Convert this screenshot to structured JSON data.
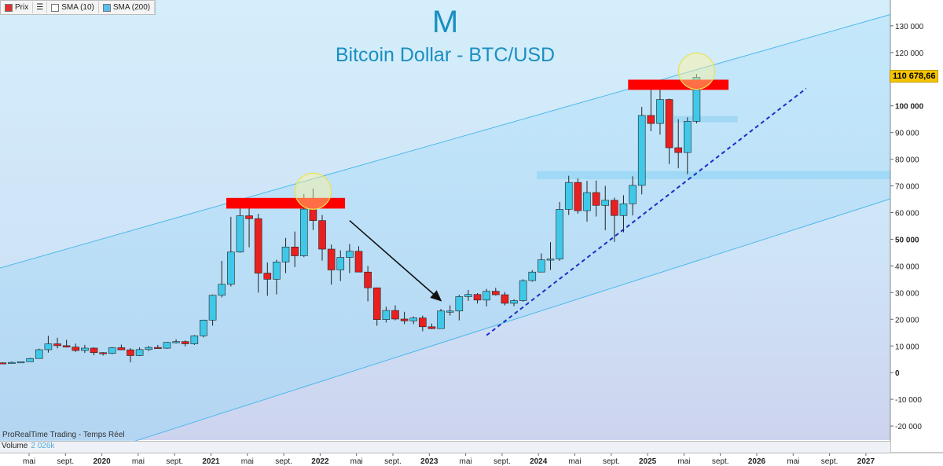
{
  "legend": {
    "menu_icon": "hamburger-menu-icon",
    "items": [
      {
        "label": "Prix",
        "color": "#e03030"
      },
      {
        "label": "SMA (10)",
        "color": "#ffffff"
      },
      {
        "label": "SMA (200)",
        "color": "#5bbdf0"
      }
    ]
  },
  "header": {
    "letter": "M",
    "title": "Bitcoin Dollar - BTC/USD"
  },
  "source_label": "ProRealTime Trading - Temps Réel",
  "volume": {
    "label": "Volume",
    "value": "2 026k"
  },
  "price_badge": "110 678,66",
  "colors": {
    "up": "#3fc8e8",
    "down": "#e82020",
    "channel": "#4fb8ec",
    "support_zone": "#9bd7f5",
    "resistance_zone": "#ff0000",
    "trendline": "#1a2fc8",
    "highlight": "#fff59a"
  },
  "chart_data": {
    "type": "candlestick",
    "timeframe": "monthly",
    "title": "Bitcoin Dollar - BTC/USD",
    "ylim": [
      -20000,
      130000
    ],
    "y_ticks": [
      "130 000",
      "120 000",
      "110 000",
      "100 000",
      "90 000",
      "80 000",
      "70 000",
      "60 000",
      "50 000",
      "40 000",
      "30 000",
      "20 000",
      "10 000",
      "0",
      "-10 000",
      "-20 000"
    ],
    "y_ticks_bold": [
      "100 000",
      "50 000",
      "0"
    ],
    "x_ticks": [
      "mai",
      "sept.",
      "2020",
      "mai",
      "sept.",
      "2021",
      "mai",
      "sept.",
      "2022",
      "mai",
      "sept.",
      "2023",
      "mai",
      "sept.",
      "2024",
      "mai",
      "sept.",
      "2025",
      "mai",
      "sept.",
      "2026",
      "mai",
      "sept.",
      "2027"
    ],
    "x_ticks_bold": [
      "2020",
      "2021",
      "2022",
      "2023",
      "2024",
      "2025",
      "2026",
      "2027"
    ],
    "candles": [
      {
        "date": "2019-01",
        "o": 3700,
        "h": 3900,
        "l": 3400,
        "c": 3450
      },
      {
        "date": "2019-02",
        "o": 3450,
        "h": 4200,
        "l": 3400,
        "c": 3850
      },
      {
        "date": "2019-03",
        "o": 3850,
        "h": 4150,
        "l": 3700,
        "c": 4100
      },
      {
        "date": "2019-04",
        "o": 4100,
        "h": 5600,
        "l": 4050,
        "c": 5300
      },
      {
        "date": "2019-05",
        "o": 5300,
        "h": 9000,
        "l": 5300,
        "c": 8600
      },
      {
        "date": "2019-06",
        "o": 8600,
        "h": 13800,
        "l": 7500,
        "c": 10800
      },
      {
        "date": "2019-07",
        "o": 10800,
        "h": 13100,
        "l": 9100,
        "c": 10100
      },
      {
        "date": "2019-08",
        "o": 10100,
        "h": 12300,
        "l": 9400,
        "c": 9600
      },
      {
        "date": "2019-09",
        "o": 9600,
        "h": 10900,
        "l": 7800,
        "c": 8300
      },
      {
        "date": "2019-10",
        "o": 8300,
        "h": 10400,
        "l": 7400,
        "c": 9200
      },
      {
        "date": "2019-11",
        "o": 9200,
        "h": 9500,
        "l": 6500,
        "c": 7500
      },
      {
        "date": "2019-12",
        "o": 7500,
        "h": 7700,
        "l": 6400,
        "c": 7200
      },
      {
        "date": "2020-01",
        "o": 7200,
        "h": 9600,
        "l": 6900,
        "c": 9350
      },
      {
        "date": "2020-02",
        "o": 9350,
        "h": 10500,
        "l": 8500,
        "c": 8550
      },
      {
        "date": "2020-03",
        "o": 8550,
        "h": 9200,
        "l": 3850,
        "c": 6400
      },
      {
        "date": "2020-04",
        "o": 6400,
        "h": 9500,
        "l": 6200,
        "c": 8650
      },
      {
        "date": "2020-05",
        "o": 8650,
        "h": 10000,
        "l": 8100,
        "c": 9450
      },
      {
        "date": "2020-06",
        "o": 9450,
        "h": 10400,
        "l": 8900,
        "c": 9150
      },
      {
        "date": "2020-07",
        "o": 9150,
        "h": 11500,
        "l": 8950,
        "c": 11350
      },
      {
        "date": "2020-08",
        "o": 11350,
        "h": 12500,
        "l": 10900,
        "c": 11650
      },
      {
        "date": "2020-09",
        "o": 11650,
        "h": 12100,
        "l": 9850,
        "c": 10800
      },
      {
        "date": "2020-10",
        "o": 10800,
        "h": 14100,
        "l": 10400,
        "c": 13800
      },
      {
        "date": "2020-11",
        "o": 13800,
        "h": 19900,
        "l": 13200,
        "c": 19700
      },
      {
        "date": "2020-12",
        "o": 19700,
        "h": 29300,
        "l": 17600,
        "c": 29000
      },
      {
        "date": "2021-01",
        "o": 29000,
        "h": 41900,
        "l": 28200,
        "c": 33100
      },
      {
        "date": "2021-02",
        "o": 33100,
        "h": 58400,
        "l": 32300,
        "c": 45200
      },
      {
        "date": "2021-03",
        "o": 45200,
        "h": 61800,
        "l": 44900,
        "c": 58800
      },
      {
        "date": "2021-04",
        "o": 58800,
        "h": 64900,
        "l": 47000,
        "c": 57700
      },
      {
        "date": "2021-05",
        "o": 57700,
        "h": 59500,
        "l": 30000,
        "c": 37300
      },
      {
        "date": "2021-06",
        "o": 37300,
        "h": 41300,
        "l": 28800,
        "c": 35000
      },
      {
        "date": "2021-07",
        "o": 35000,
        "h": 42300,
        "l": 29300,
        "c": 41500
      },
      {
        "date": "2021-08",
        "o": 41500,
        "h": 50500,
        "l": 37300,
        "c": 47100
      },
      {
        "date": "2021-09",
        "o": 47100,
        "h": 52900,
        "l": 39600,
        "c": 43800
      },
      {
        "date": "2021-10",
        "o": 43800,
        "h": 67000,
        "l": 43300,
        "c": 61300
      },
      {
        "date": "2021-11",
        "o": 61300,
        "h": 69000,
        "l": 53500,
        "c": 57000
      },
      {
        "date": "2021-12",
        "o": 57000,
        "h": 59100,
        "l": 42000,
        "c": 46300
      },
      {
        "date": "2022-01",
        "o": 46300,
        "h": 48000,
        "l": 33000,
        "c": 38500
      },
      {
        "date": "2022-02",
        "o": 38500,
        "h": 45800,
        "l": 34300,
        "c": 43200
      },
      {
        "date": "2022-03",
        "o": 43200,
        "h": 48200,
        "l": 37300,
        "c": 45500
      },
      {
        "date": "2022-04",
        "o": 45500,
        "h": 47400,
        "l": 37600,
        "c": 37700
      },
      {
        "date": "2022-05",
        "o": 37700,
        "h": 40000,
        "l": 26700,
        "c": 31800
      },
      {
        "date": "2022-06",
        "o": 31800,
        "h": 31900,
        "l": 17600,
        "c": 19900
      },
      {
        "date": "2022-07",
        "o": 19900,
        "h": 24700,
        "l": 18800,
        "c": 23300
      },
      {
        "date": "2022-08",
        "o": 23300,
        "h": 25200,
        "l": 19600,
        "c": 20100
      },
      {
        "date": "2022-09",
        "o": 20100,
        "h": 22800,
        "l": 18200,
        "c": 19400
      },
      {
        "date": "2022-10",
        "o": 19400,
        "h": 21000,
        "l": 18200,
        "c": 20500
      },
      {
        "date": "2022-11",
        "o": 20500,
        "h": 21400,
        "l": 15500,
        "c": 17200
      },
      {
        "date": "2022-12",
        "o": 17200,
        "h": 18400,
        "l": 16300,
        "c": 16500
      },
      {
        "date": "2023-01",
        "o": 16500,
        "h": 23900,
        "l": 16500,
        "c": 23100
      },
      {
        "date": "2023-02",
        "o": 23100,
        "h": 25200,
        "l": 21400,
        "c": 23100
      },
      {
        "date": "2023-03",
        "o": 23100,
        "h": 29200,
        "l": 19600,
        "c": 28500
      },
      {
        "date": "2023-04",
        "o": 28500,
        "h": 31000,
        "l": 26900,
        "c": 29300
      },
      {
        "date": "2023-05",
        "o": 29300,
        "h": 29800,
        "l": 25900,
        "c": 27200
      },
      {
        "date": "2023-06",
        "o": 27200,
        "h": 31400,
        "l": 24800,
        "c": 30500
      },
      {
        "date": "2023-07",
        "o": 30500,
        "h": 31800,
        "l": 28900,
        "c": 29200
      },
      {
        "date": "2023-08",
        "o": 29200,
        "h": 30200,
        "l": 25200,
        "c": 26000
      },
      {
        "date": "2023-09",
        "o": 26000,
        "h": 27500,
        "l": 24900,
        "c": 27000
      },
      {
        "date": "2023-10",
        "o": 27000,
        "h": 35000,
        "l": 26600,
        "c": 34500
      },
      {
        "date": "2023-11",
        "o": 34500,
        "h": 38400,
        "l": 34100,
        "c": 37700
      },
      {
        "date": "2023-12",
        "o": 37700,
        "h": 44700,
        "l": 37600,
        "c": 42300
      },
      {
        "date": "2024-01",
        "o": 42300,
        "h": 48900,
        "l": 38500,
        "c": 42600
      },
      {
        "date": "2024-02",
        "o": 42600,
        "h": 64000,
        "l": 41900,
        "c": 61200
      },
      {
        "date": "2024-03",
        "o": 61200,
        "h": 73800,
        "l": 59100,
        "c": 71300
      },
      {
        "date": "2024-04",
        "o": 71300,
        "h": 72800,
        "l": 59600,
        "c": 60700
      },
      {
        "date": "2024-05",
        "o": 60700,
        "h": 71900,
        "l": 56600,
        "c": 67500
      },
      {
        "date": "2024-06",
        "o": 67500,
        "h": 72000,
        "l": 58500,
        "c": 62700
      },
      {
        "date": "2024-07",
        "o": 62700,
        "h": 70000,
        "l": 53400,
        "c": 64600
      },
      {
        "date": "2024-08",
        "o": 64600,
        "h": 65600,
        "l": 49000,
        "c": 58900
      },
      {
        "date": "2024-09",
        "o": 58900,
        "h": 66500,
        "l": 52600,
        "c": 63300
      },
      {
        "date": "2024-10",
        "o": 63300,
        "h": 73600,
        "l": 58900,
        "c": 70200
      },
      {
        "date": "2024-11",
        "o": 70200,
        "h": 99600,
        "l": 66800,
        "c": 96400
      },
      {
        "date": "2024-12",
        "o": 96400,
        "h": 108300,
        "l": 90500,
        "c": 93400
      },
      {
        "date": "2025-01",
        "o": 93400,
        "h": 109300,
        "l": 89200,
        "c": 102400
      },
      {
        "date": "2025-02",
        "o": 102400,
        "h": 102700,
        "l": 78200,
        "c": 84300
      },
      {
        "date": "2025-03",
        "o": 84300,
        "h": 95000,
        "l": 76600,
        "c": 82500
      },
      {
        "date": "2025-04",
        "o": 82500,
        "h": 95700,
        "l": 74400,
        "c": 94200
      },
      {
        "date": "2025-05",
        "o": 94200,
        "h": 111900,
        "l": 93400,
        "c": 110700
      }
    ],
    "annotations": [
      {
        "type": "channel_line",
        "p1": {
          "date": "2019-01",
          "price": 39500
        },
        "p2": {
          "date": "2027-03",
          "price": 135000
        }
      },
      {
        "type": "channel_line",
        "p1": {
          "date": "2020-05",
          "price": -24000
        },
        "p2": {
          "date": "2027-03",
          "price": 66000
        }
      },
      {
        "type": "resistance_zone",
        "from": "2021-02",
        "to": "2022-02",
        "low": 61500,
        "high": 65500
      },
      {
        "type": "resistance_zone",
        "from": "2024-10",
        "to": "2025-08",
        "low": 106000,
        "high": 109800
      },
      {
        "type": "support_zone",
        "from": "2023-12",
        "to": "2027-04",
        "low": 72500,
        "high": 75500
      },
      {
        "type": "support_zone",
        "from": "2025-03",
        "to": "2025-09",
        "low": 93800,
        "high": 96200
      },
      {
        "type": "trendline",
        "p1": {
          "date": "2023-06",
          "price": 14000
        },
        "p2": {
          "date": "2026-05",
          "price": 106500
        }
      },
      {
        "type": "arrow",
        "p1": {
          "date": "2022-03",
          "price": 57000
        },
        "p2": {
          "date": "2023-01",
          "price": 27000
        }
      },
      {
        "type": "highlight_circle",
        "date": "2021-11",
        "price": 68000
      },
      {
        "type": "highlight_circle",
        "date": "2025-05",
        "price": 113000
      }
    ]
  }
}
